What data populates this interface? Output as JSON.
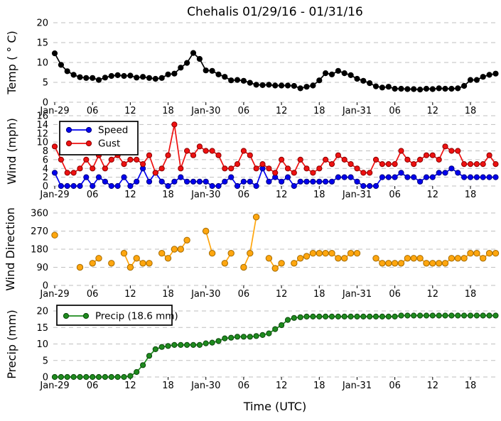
{
  "window": {
    "title": "Chehalis 01/29/16 - 01/31/16"
  },
  "colors": {
    "temp": "#000000",
    "speed": "#0000ee",
    "speed_edge": "#000080",
    "gust": "#ee1111",
    "gust_edge": "#8b0000",
    "direction": "#ffa60e",
    "direction_edge": "#a36a00",
    "precip": "#1e8b1e",
    "precip_edge": "#0b470b",
    "grid": "#bfbfbf"
  },
  "chart_data": {
    "type": "line",
    "title": "Chehalis 01/29/16 - 01/31/16",
    "xlabel": "Time (UTC)",
    "x_start": "2016-01-29 00:00 UTC",
    "x_step_hours": 1,
    "x_range_hours": [
      0,
      70.3
    ],
    "x_tick_hours": [
      0,
      6,
      12,
      18,
      24,
      30,
      36,
      42,
      48,
      54,
      60,
      66
    ],
    "x_tick_labels": [
      "Jan-29",
      "06",
      "12",
      "18",
      "Jan-30",
      "06",
      "12",
      "18",
      "Jan-31",
      "06",
      "12",
      "18"
    ],
    "grid": "dashed horizontal",
    "subplots": [
      {
        "name": "temp",
        "ylabel": "Temp ( ° C)",
        "ylim": [
          0,
          20
        ],
        "yticks": [
          0,
          5,
          10,
          15,
          20
        ],
        "series": [
          {
            "name": "Temp",
            "color": "#000000",
            "edge": "#000000",
            "values": [
              12.3,
              9.4,
              7.8,
              6.9,
              6.3,
              6.1,
              6.1,
              5.6,
              6.2,
              6.6,
              6.8,
              6.6,
              6.7,
              6.2,
              6.4,
              6.1,
              5.9,
              6.1,
              7.0,
              7.2,
              8.7,
              9.9,
              12.4,
              10.9,
              8.0,
              7.9,
              7.0,
              6.4,
              5.5,
              5.6,
              5.4,
              4.9,
              4.4,
              4.3,
              4.4,
              4.2,
              4.2,
              4.2,
              4.1,
              3.5,
              3.9,
              4.2,
              5.5,
              7.3,
              7.0,
              7.9,
              7.3,
              6.8,
              5.9,
              5.4,
              4.8,
              4.0,
              3.7,
              3.9,
              3.4,
              3.4,
              3.3,
              3.3,
              3.2,
              3.4,
              3.3,
              3.5,
              3.4,
              3.4,
              3.5,
              4.1,
              5.6,
              5.6,
              6.4,
              6.9,
              7.2
            ]
          }
        ]
      },
      {
        "name": "wind",
        "ylabel": "Wind (mph)",
        "ylim": [
          0,
          16
        ],
        "yticks": [
          0,
          2,
          4,
          6,
          8,
          10,
          12,
          14,
          16
        ],
        "legend": {
          "position": "upper-left",
          "labels": [
            "Speed",
            "Gust"
          ]
        },
        "series": [
          {
            "name": "Speed",
            "color": "#0000ee",
            "edge": "#000080",
            "values": [
              3,
              0,
              0,
              0,
              0,
              2,
              0,
              2,
              1,
              0,
              0,
              2,
              0,
              1,
              4,
              1,
              3,
              1,
              0,
              1,
              2,
              1,
              1,
              1,
              1,
              0,
              0,
              1,
              2,
              0,
              1,
              1,
              0,
              4,
              1,
              2,
              1,
              2,
              0,
              1,
              1,
              1,
              1,
              1,
              1,
              2,
              2,
              2,
              1,
              0,
              0,
              0,
              2,
              2,
              2,
              3,
              2,
              2,
              1,
              2,
              2,
              3,
              3,
              4,
              3,
              2,
              2,
              2,
              2,
              2,
              2
            ]
          },
          {
            "name": "Gust",
            "color": "#ee1111",
            "edge": "#8b0000",
            "values": [
              9,
              6,
              3,
              3,
              4,
              6,
              4,
              7,
              4,
              6,
              7,
              5,
              6,
              6,
              5,
              7,
              3,
              4,
              7,
              14,
              4,
              8,
              7,
              9,
              8,
              8,
              7,
              4,
              4,
              5,
              8,
              7,
              4,
              5,
              4,
              3,
              6,
              4,
              3,
              6,
              4,
              3,
              4,
              6,
              5,
              7,
              6,
              5,
              4,
              3,
              3,
              6,
              5,
              5,
              5,
              8,
              6,
              5,
              6,
              7,
              7,
              6,
              9,
              8,
              8,
              5,
              5,
              5,
              5,
              7,
              5
            ]
          }
        ]
      },
      {
        "name": "wind-direction",
        "ylabel": "Wind Direction",
        "ylim": [
          0,
          360
        ],
        "yticks": [
          0,
          90,
          180,
          270,
          360
        ],
        "series": [
          {
            "name": "Direction",
            "color": "#ffa60e",
            "edge": "#a36a00",
            "values": [
              250,
              null,
              null,
              null,
              90,
              null,
              110,
              135,
              null,
              110,
              null,
              160,
              90,
              135,
              110,
              110,
              null,
              160,
              135,
              180,
              180,
              225,
              null,
              null,
              270,
              160,
              null,
              110,
              160,
              null,
              90,
              160,
              340,
              null,
              135,
              85,
              110,
              null,
              110,
              135,
              145,
              160,
              160,
              160,
              160,
              135,
              135,
              160,
              160,
              null,
              null,
              135,
              110,
              110,
              110,
              110,
              135,
              135,
              135,
              110,
              110,
              110,
              110,
              135,
              135,
              135,
              160,
              160,
              135,
              160,
              160
            ]
          }
        ]
      },
      {
        "name": "precip",
        "ylabel": "Precip (mm)",
        "ylim": [
          0,
          20
        ],
        "yticks": [
          0,
          5,
          10,
          15,
          20
        ],
        "legend": {
          "position": "upper-left",
          "labels": [
            "Precip (18.6 mm)"
          ]
        },
        "total_mm": 18.6,
        "series": [
          {
            "name": "Precip",
            "color": "#1e8b1e",
            "edge": "#0b470b",
            "values": [
              0,
              0,
              0,
              0,
              0,
              0,
              0,
              0,
              0,
              0,
              0,
              0,
              0.3,
              1.5,
              3.6,
              6.4,
              8.4,
              9.1,
              9.4,
              9.7,
              9.7,
              9.7,
              9.7,
              9.7,
              10.2,
              10.4,
              10.9,
              11.7,
              11.9,
              12.2,
              12.2,
              12.2,
              12.4,
              12.7,
              13.2,
              14.5,
              15.7,
              17.3,
              17.9,
              18.1,
              18.3,
              18.3,
              18.3,
              18.3,
              18.3,
              18.3,
              18.3,
              18.3,
              18.3,
              18.3,
              18.3,
              18.3,
              18.3,
              18.3,
              18.3,
              18.6,
              18.6,
              18.6,
              18.6,
              18.6,
              18.6,
              18.6,
              18.6,
              18.6,
              18.6,
              18.6,
              18.6,
              18.6,
              18.6,
              18.6,
              18.6
            ]
          }
        ]
      }
    ]
  }
}
